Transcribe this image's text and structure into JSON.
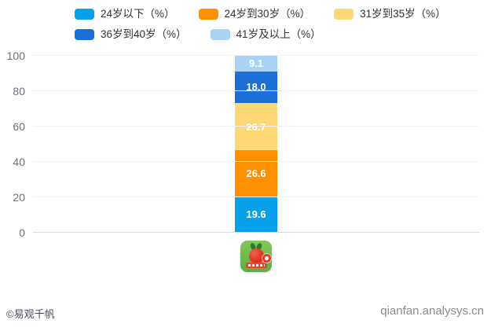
{
  "chart_data": {
    "type": "bar",
    "stacked": true,
    "orientation": "vertical",
    "title": "",
    "xlabel": "",
    "ylabel": "",
    "categories": [
      "app-icon"
    ],
    "category_icon": "radish-app-icon",
    "series": [
      {
        "name": "24岁以下（%）",
        "value": 19.6,
        "label": "19.6",
        "color": "#09A0EA"
      },
      {
        "name": "24岁到30岁（%）",
        "value": 26.6,
        "label": "26.6",
        "color": "#FF9100"
      },
      {
        "name": "31岁到35岁（%）",
        "value": 26.7,
        "label": "26.7",
        "color": "#FFD876"
      },
      {
        "name": "36岁到40岁（%）",
        "value": 18.0,
        "label": "18.0",
        "color": "#1C6FD6"
      },
      {
        "name": "41岁及以上（%）",
        "value": 9.1,
        "label": "9.1",
        "color": "#A9D3F4"
      }
    ],
    "ylim": [
      0,
      100
    ],
    "yticks": [
      0,
      20,
      40,
      60,
      80,
      100
    ],
    "legend_position": "top-left",
    "grid": true,
    "value_label_color": "#ffffff"
  },
  "footer": {
    "copyright": "©易观千帆",
    "site": "qianfan.analysys.cn"
  }
}
